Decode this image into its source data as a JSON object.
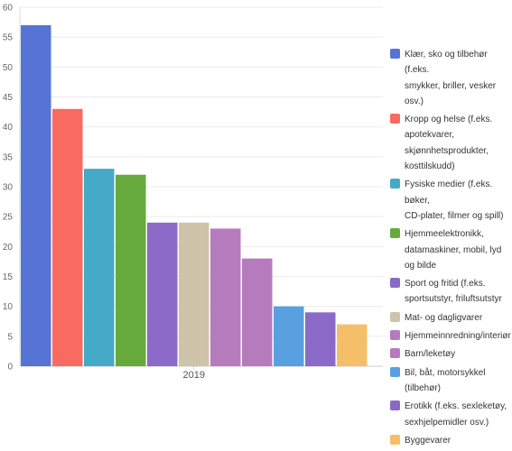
{
  "chart_data": {
    "type": "bar",
    "categories": [
      "2019"
    ],
    "ylim": [
      0,
      60
    ],
    "yticks": [
      0,
      5,
      10,
      15,
      20,
      25,
      30,
      35,
      40,
      45,
      50,
      55,
      60
    ],
    "grid": true,
    "legend_position": "right",
    "series": [
      {
        "name": "Klær, sko og tilbehør (f.eks. smykker, briller, vesker osv.)",
        "values": [
          57
        ],
        "color": "#5674d6",
        "label_lines": [
          "Klær, sko og tilbehør (f.eks.",
          "smykker, briller, vesker osv.)"
        ]
      },
      {
        "name": "Kropp og helse (f.eks. apotekvarer, skjønnhetsprodukter, kosttilskudd)",
        "values": [
          43
        ],
        "color": "#f96a61",
        "label_lines": [
          "Kropp og helse (f.eks.",
          "apotekvarer,",
          "skjønnhetsprodukter,",
          "kosttilskudd)"
        ]
      },
      {
        "name": "Fysiske medier (f.eks. bøker, CD-plater, filmer og spill)",
        "values": [
          33
        ],
        "color": "#45aac7",
        "label_lines": [
          "Fysiske medier (f.eks. bøker,",
          "CD-plater, filmer og spill)"
        ]
      },
      {
        "name": "Hjemmeelektronikk, datamaskiner, mobil, lyd og bilde",
        "values": [
          32
        ],
        "color": "#67aa3c",
        "label_lines": [
          "Hjemmeelektronikk,",
          "datamaskiner, mobil, lyd og bilde"
        ]
      },
      {
        "name": "Sport og fritid (f.eks. sportsutstyr, friluftsutstyr",
        "values": [
          24
        ],
        "color": "#8a6ac6",
        "label_lines": [
          "Sport og fritid (f.eks.",
          "sportsutstyr, friluftsutstyr"
        ]
      },
      {
        "name": "Mat- og dagligvarer",
        "values": [
          24
        ],
        "color": "#cfc3aa",
        "label_lines": [
          "Mat- og dagligvarer"
        ]
      },
      {
        "name": "Hjemmeinnredning/interiør",
        "values": [
          23
        ],
        "color": "#b67bbd",
        "label_lines": [
          "Hjemmeinnredning/interiør"
        ]
      },
      {
        "name": "Barn/leketøy",
        "values": [
          18
        ],
        "color": "#b67bbd",
        "label_lines": [
          "Barn/leketøy"
        ]
      },
      {
        "name": "Bil, båt, motorsykkel (tilbehør)",
        "values": [
          10
        ],
        "color": "#58a0e0",
        "label_lines": [
          "Bil, båt, motorsykkel",
          "(tilbehør)"
        ]
      },
      {
        "name": "Erotikk (f.eks. sexleketøy, sexhjelpemidler osv.)",
        "values": [
          9
        ],
        "color": "#8a6ac6",
        "label_lines": [
          "Erotikk (f.eks. sexleketøy,",
          "sexhjelpemidler osv.)"
        ]
      },
      {
        "name": "Byggevarer",
        "values": [
          7
        ],
        "color": "#f5bf6a",
        "label_lines": [
          "Byggevarer"
        ]
      }
    ]
  }
}
